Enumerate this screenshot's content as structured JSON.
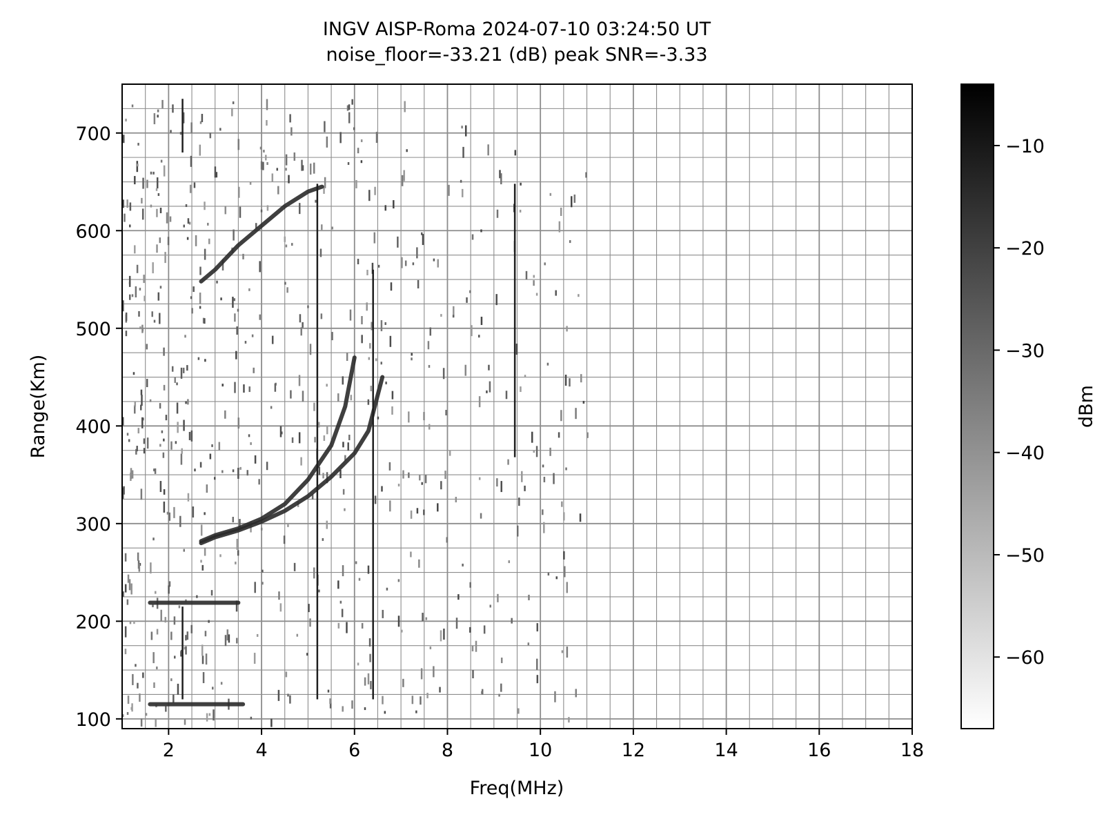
{
  "chart_data": {
    "type": "heatmap",
    "title": "INGV AISP-Roma 2024-07-10 03:24:50 UT",
    "subtitle": "noise_floor=-33.21 (dB) peak SNR=-3.33",
    "xlabel": "Freq(MHz)",
    "ylabel": "Range(Km)",
    "xlim": [
      1,
      18
    ],
    "ylim": [
      90,
      750
    ],
    "xticks": [
      2,
      4,
      6,
      8,
      10,
      12,
      14,
      16,
      18
    ],
    "xtick_labels": [
      "2",
      "4",
      "6",
      "8",
      "10",
      "12",
      "14",
      "16",
      "18"
    ],
    "yticks": [
      100,
      200,
      300,
      400,
      500,
      600,
      700
    ],
    "ytick_labels": [
      "100",
      "200",
      "300",
      "400",
      "500",
      "600",
      "700"
    ],
    "grid": true,
    "colorbar": {
      "label": "dBm",
      "range": [
        -67,
        -4
      ],
      "ticks": [
        -10,
        -20,
        -30,
        -40,
        -50,
        -60
      ],
      "tick_labels": [
        "−10",
        "−20",
        "−30",
        "−40",
        "−50",
        "−60"
      ],
      "colormap": "gray_r"
    },
    "traces": [
      {
        "x": [
          2.7,
          3.0,
          3.5,
          4.0,
          4.5,
          5.0,
          5.5,
          5.8,
          6.0
        ],
        "y": [
          282,
          288,
          295,
          305,
          320,
          345,
          380,
          420,
          470
        ]
      },
      {
        "x": [
          2.7,
          3.0,
          3.5,
          4.0,
          4.5,
          5.0,
          5.5,
          6.0,
          6.3,
          6.6
        ],
        "y": [
          280,
          286,
          293,
          302,
          313,
          328,
          348,
          372,
          395,
          450
        ]
      },
      {
        "x": [
          2.7,
          3.0,
          3.5,
          4.0,
          4.5,
          5.0,
          5.3
        ],
        "y": [
          548,
          560,
          585,
          605,
          625,
          640,
          645
        ]
      },
      {
        "x": [
          1.6,
          2.0,
          3.0,
          3.5
        ],
        "y": [
          219,
          219,
          219,
          219
        ]
      },
      {
        "x": [
          1.6,
          2.0,
          3.0,
          3.6
        ],
        "y": [
          115,
          115,
          115,
          115
        ]
      }
    ],
    "vertical_lines": [
      {
        "x": 2.3,
        "y": [
          120,
          215
        ]
      },
      {
        "x": 2.3,
        "y": [
          680,
          735
        ]
      },
      {
        "x": 5.2,
        "y": [
          120,
          648
        ]
      },
      {
        "x": 6.4,
        "y": [
          120,
          560
        ]
      },
      {
        "x": 9.45,
        "y": [
          368,
          648
        ]
      }
    ]
  }
}
